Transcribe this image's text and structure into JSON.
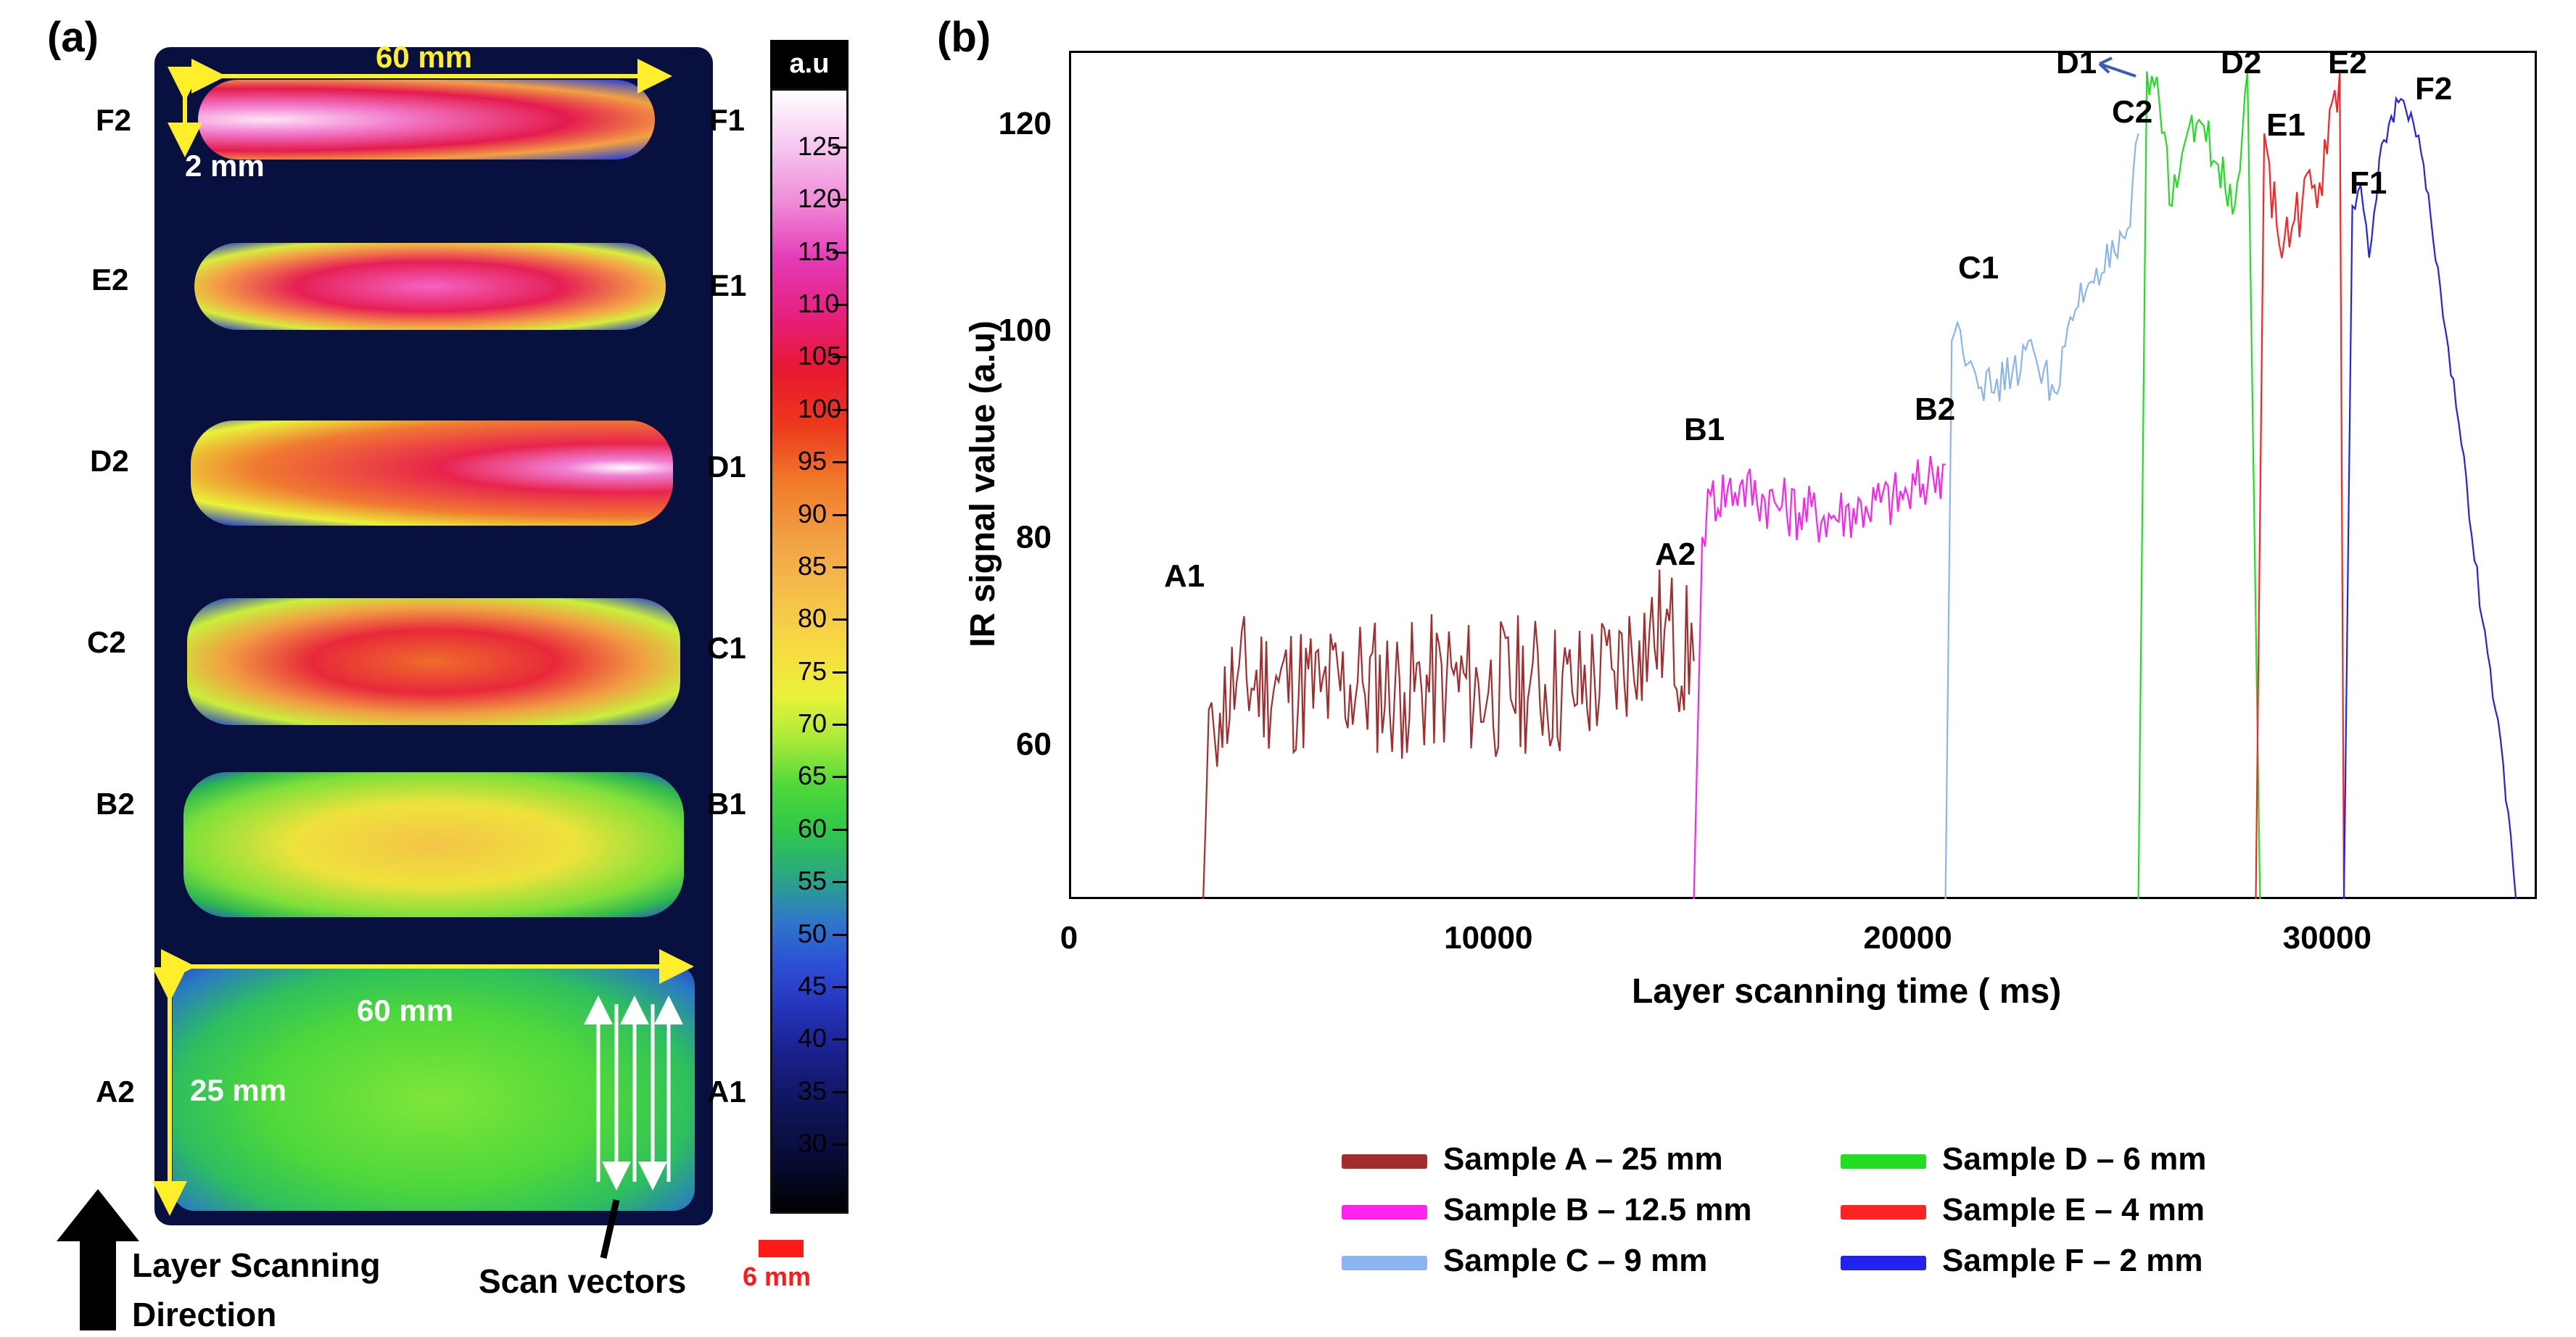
{
  "panel_a": {
    "letter": "(a)",
    "dim_top_width": "60 mm",
    "dim_top_height": "2 mm",
    "dim_bottom_width": "60 mm",
    "dim_bottom_height": "25 mm",
    "left_labels": [
      "F2",
      "E2",
      "D2",
      "C2",
      "B2",
      "A2"
    ],
    "right_labels": [
      "F1",
      "E1",
      "D1",
      "C1",
      "B1",
      "A1"
    ],
    "colorbar_title": "a.u",
    "colorbar_ticks": [
      "125",
      "120",
      "115",
      "110",
      "105",
      "100",
      "95",
      "90",
      "85",
      "80",
      "75",
      "70",
      "65",
      "60",
      "55",
      "50",
      "45",
      "40",
      "35",
      "30"
    ],
    "scale_bar_label": "6 mm",
    "scan_direction_label_1": "Layer Scanning",
    "scan_direction_label_2": "Direction",
    "scan_vectors_label": "Scan vectors"
  },
  "panel_b": {
    "letter": "(b)",
    "point_labels": {
      "A1": "A1",
      "A2": "A2",
      "B1": "B1",
      "B2": "B2",
      "C1": "C1",
      "C2": "C2",
      "D1": "D1",
      "D2": "D2",
      "E1": "E1",
      "E2": "E2",
      "F1": "F1",
      "F2": "F2"
    }
  },
  "chart_data": {
    "type": "line",
    "xlabel": "Layer scanning time ( ms)",
    "ylabel": "IR signal value  (a.u)",
    "xlim": [
      0,
      35000
    ],
    "ylim": [
      45,
      127
    ],
    "x_ticks": [
      0,
      10000,
      20000,
      30000
    ],
    "y_ticks": [
      60,
      80,
      100,
      120
    ],
    "legend_position": "bottom",
    "grid": false,
    "series": [
      {
        "name": "Sample A – 25 mm",
        "color": "#a32d2d",
        "x": [
          3200,
          3400,
          3600,
          4000,
          5000,
          6000,
          7000,
          8000,
          9000,
          10000,
          11000,
          12000,
          13000,
          13600,
          14200,
          14900
        ],
        "y": [
          45,
          64,
          63,
          66,
          66,
          65,
          66,
          65,
          66,
          65,
          66,
          65,
          67,
          70,
          71,
          68
        ]
      },
      {
        "name": "Sample B – 12.5 mm",
        "color": "#ff22ee",
        "x": [
          14900,
          15100,
          15300,
          16000,
          17000,
          18000,
          19000,
          20000,
          20600,
          20900
        ],
        "y": [
          45,
          80,
          84,
          85,
          83,
          82,
          83,
          84,
          86,
          87
        ]
      },
      {
        "name": "Sample C – 9 mm",
        "color": "#8cb4ee",
        "x": [
          20900,
          21050,
          21250,
          21500,
          22000,
          22500,
          23000,
          23500,
          24000,
          24500,
          25000,
          25300,
          25500
        ],
        "y": [
          45,
          99,
          100,
          97,
          94,
          96,
          98,
          94,
          102,
          106,
          107,
          110,
          119
        ]
      },
      {
        "name": "Sample D – 6 mm",
        "color": "#22dd22",
        "x": [
          25500,
          25700,
          26000,
          26300,
          26600,
          27000,
          27400,
          27800,
          28100,
          28400
        ],
        "y": [
          45,
          125,
          122,
          112,
          118,
          120,
          116,
          112,
          125,
          45
        ]
      },
      {
        "name": "Sample E – 4 mm",
        "color": "#ff2222",
        "x": [
          28300,
          28500,
          28800,
          29100,
          29400,
          29700,
          30000,
          30300,
          30400
        ],
        "y": [
          45,
          119,
          110,
          108,
          112,
          114,
          117,
          125,
          45
        ]
      },
      {
        "name": "Sample F – 2 mm",
        "color": "#2222ee",
        "x": [
          30400,
          30600,
          30800,
          31000,
          31300,
          31700,
          32000,
          32300,
          32700,
          33200,
          33700,
          34200,
          34500
        ],
        "y": [
          45,
          112,
          114,
          107,
          118,
          122,
          121,
          116,
          104,
          89,
          72,
          58,
          45
        ]
      }
    ]
  }
}
